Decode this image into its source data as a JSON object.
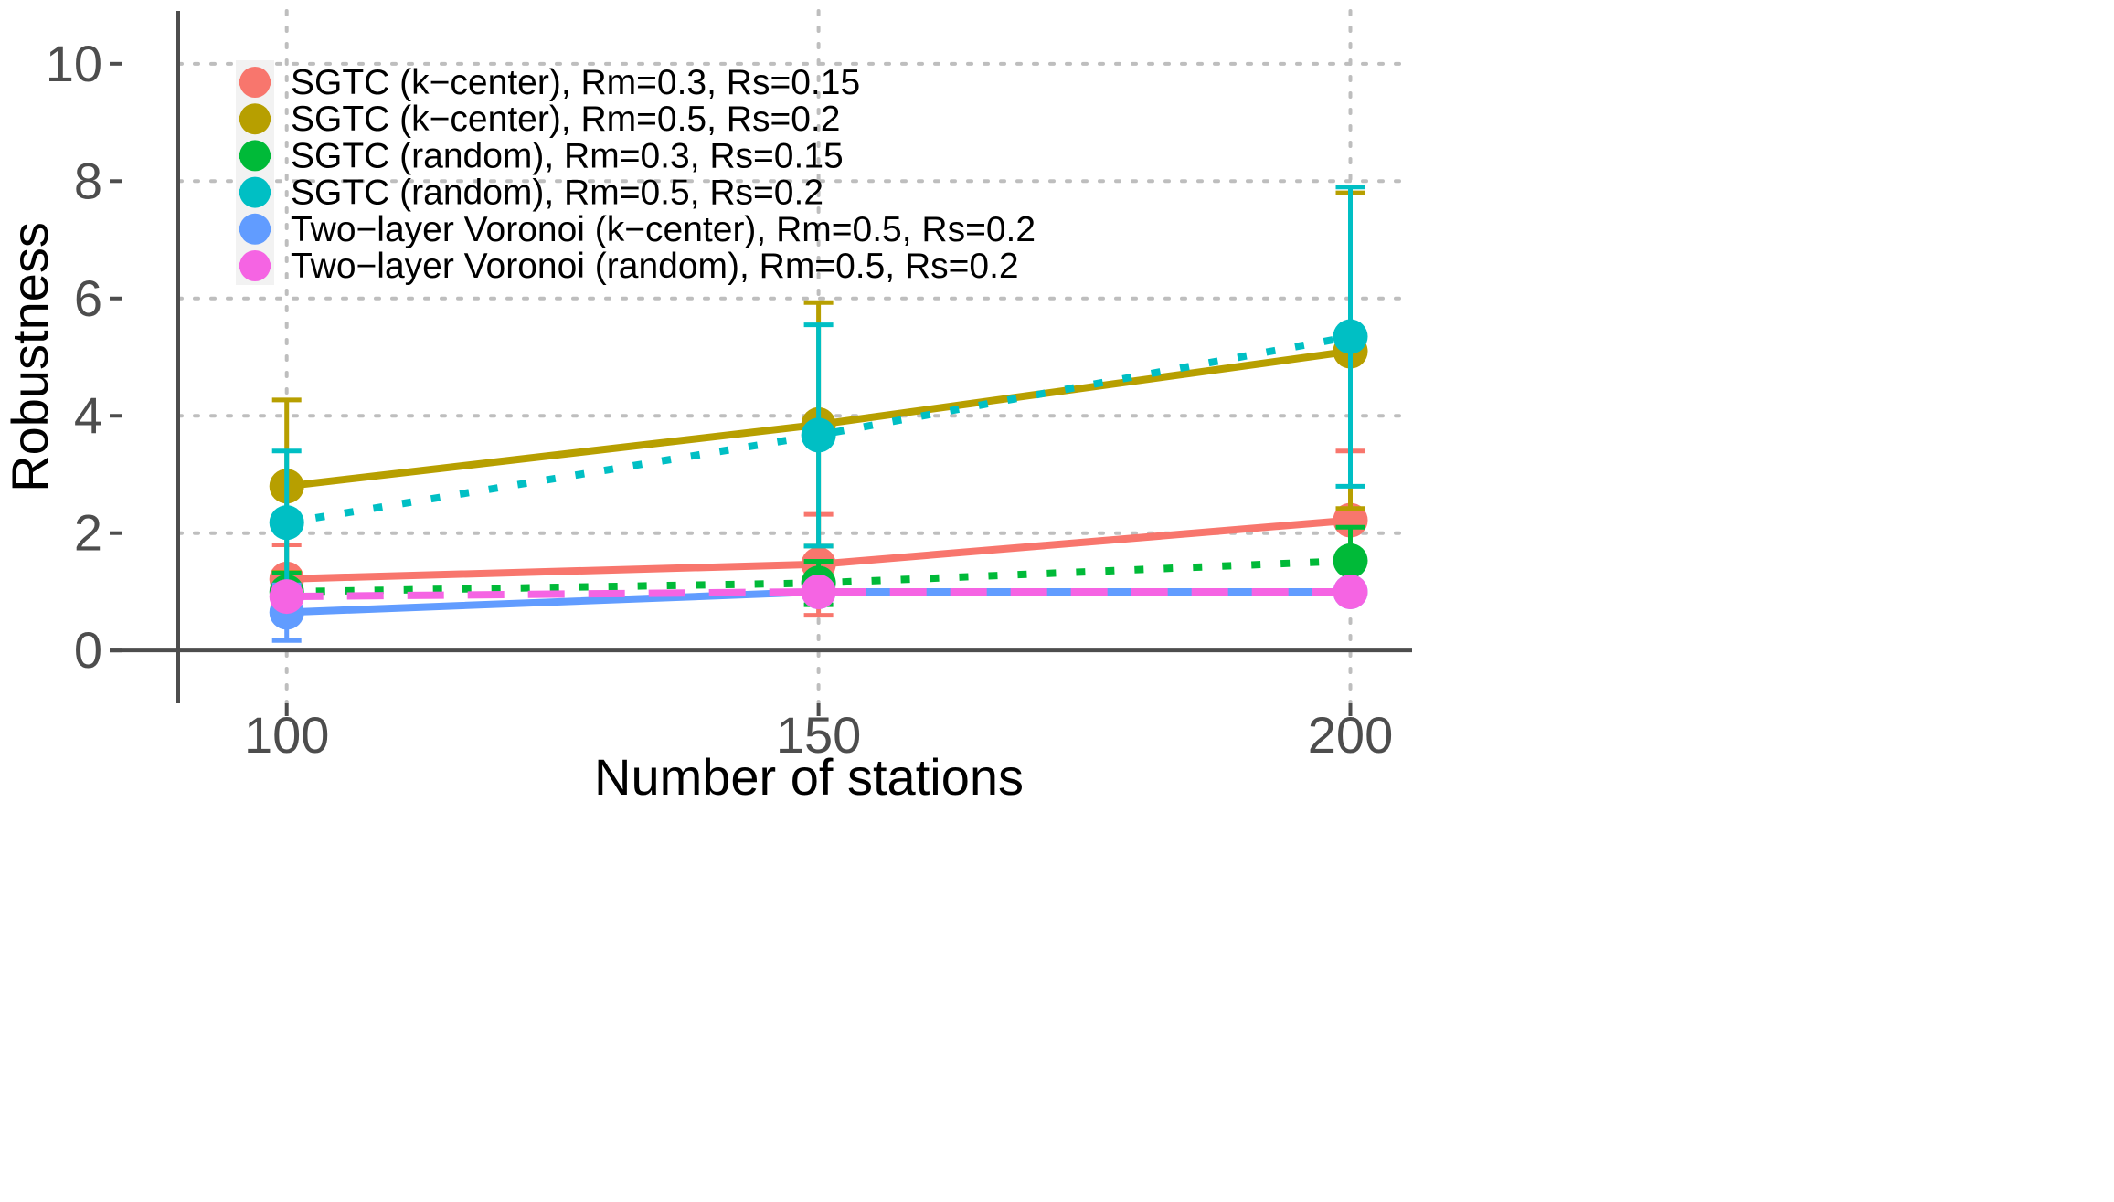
{
  "chart_data": {
    "type": "line",
    "title": "",
    "xlabel": "Number of stations",
    "ylabel": "Robustness",
    "x": [
      100,
      150,
      200
    ],
    "x_ticks": [
      "100",
      "150",
      "200"
    ],
    "y_ticks": [
      "0",
      "2",
      "4",
      "6",
      "8",
      "10"
    ],
    "xlim": [
      89.8,
      205.8
    ],
    "ylim": [
      -0.9,
      10.9
    ],
    "grid": true,
    "legend_position": "top-left",
    "series": [
      {
        "name": "SGTC (k−center), Rm=0.3, Rs=0.15",
        "color": "#F8766D",
        "dash": "solid",
        "values": [
          1.22,
          1.47,
          2.22
        ],
        "err_low": [
          0.65,
          0.6,
          1.05
        ],
        "err_high": [
          1.8,
          2.32,
          3.4
        ]
      },
      {
        "name": "SGTC (k−center), Rm=0.5, Rs=0.2",
        "color": "#B79F00",
        "dash": "solid",
        "values": [
          2.8,
          3.85,
          5.1
        ],
        "err_low": [
          1.33,
          1.78,
          2.42
        ],
        "err_high": [
          4.27,
          5.93,
          7.8
        ]
      },
      {
        "name": "SGTC (random), Rm=0.3, Rs=0.15",
        "color": "#00BA38",
        "dash": "dotted",
        "values": [
          1.0,
          1.15,
          1.53
        ],
        "err_low": [
          0.68,
          0.78,
          0.95
        ],
        "err_high": [
          1.32,
          1.52,
          2.1
        ]
      },
      {
        "name": "SGTC (random), Rm=0.5, Rs=0.2",
        "color": "#00BFC4",
        "dash": "dotted",
        "values": [
          2.18,
          3.67,
          5.35
        ],
        "err_low": [
          0.95,
          1.78,
          2.8
        ],
        "err_high": [
          3.4,
          5.55,
          7.9
        ]
      },
      {
        "name": "Two−layer Voronoi (k−center), Rm=0.5, Rs=0.2",
        "color": "#619CFF",
        "dash": "solid",
        "values": [
          0.65,
          1.0,
          1.0
        ],
        "err_low": [
          0.17,
          1.0,
          1.0
        ],
        "err_high": [
          1.12,
          1.0,
          1.0
        ]
      },
      {
        "name": "Two−layer Voronoi (random), Rm=0.5, Rs=0.2",
        "color": "#F564E3",
        "dash": "dashed",
        "values": [
          0.92,
          1.0,
          1.0
        ],
        "err_low": [
          0.92,
          1.0,
          1.0
        ],
        "err_high": [
          0.92,
          1.0,
          1.0
        ]
      }
    ]
  }
}
